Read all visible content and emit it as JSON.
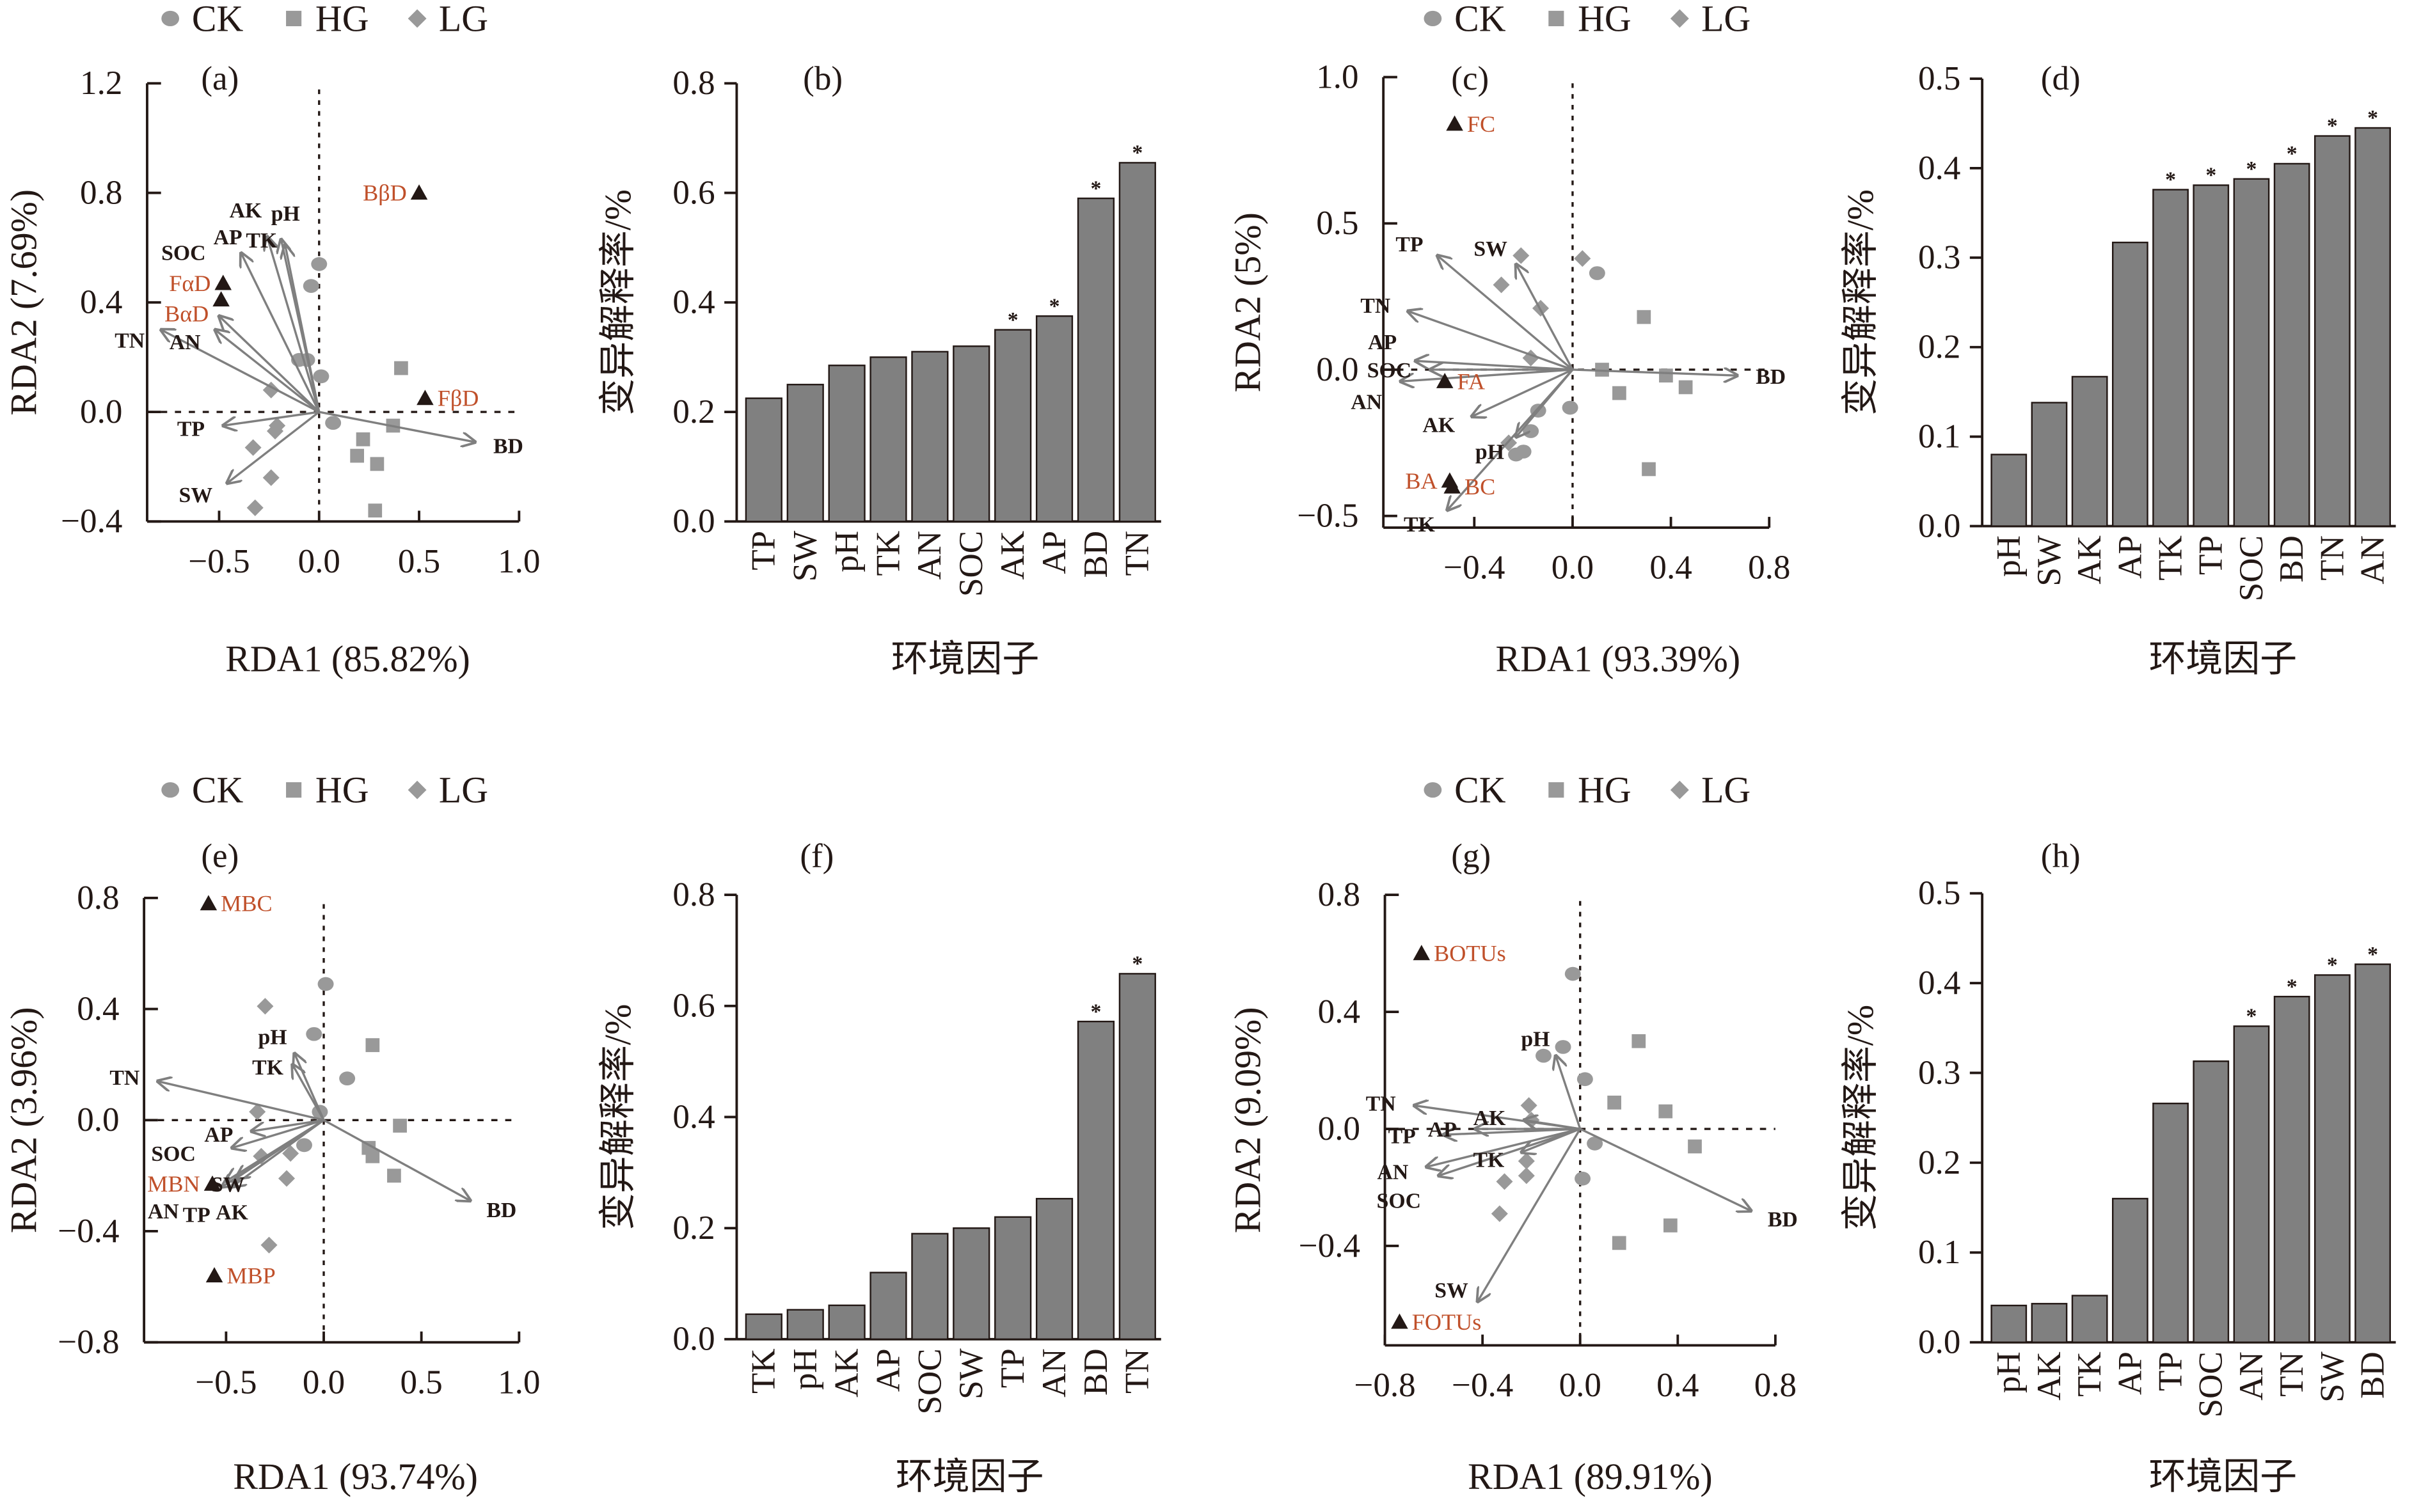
{
  "legend": {
    "items": [
      {
        "label": "CK",
        "shape": "circle"
      },
      {
        "label": "HG",
        "shape": "square"
      },
      {
        "label": "LG",
        "shape": "diamond"
      }
    ]
  },
  "colors": {
    "sample": "#999999",
    "arrow": "#7f7f7f",
    "response_label": "#c0502a",
    "response_marker": "#231815",
    "bar": "#808080"
  },
  "chart_data": [
    {
      "panel": "(a)",
      "type": "scatter",
      "xlabel": "RDA1 (85.82%)",
      "ylabel": "RDA2 (7.69%)",
      "xlim": [
        -0.86,
        1.0
      ],
      "ylim": [
        -0.4,
        1.2
      ],
      "xticks": [
        "−0.5",
        "0.0",
        "0.5",
        "1.0"
      ],
      "yticks": [
        "−0.4",
        "0.0",
        "0.4",
        "0.8",
        "1.2"
      ],
      "env_arrows": [
        {
          "name": "TN",
          "x": -0.79,
          "y": 0.3
        },
        {
          "name": "AN",
          "x": -0.52,
          "y": 0.3
        },
        {
          "name": "SOC",
          "x": -0.5,
          "y": 0.35
        },
        {
          "name": "AP",
          "x": -0.39,
          "y": 0.58
        },
        {
          "name": "AK",
          "x": -0.26,
          "y": 0.64
        },
        {
          "name": "TK",
          "x": -0.19,
          "y": 0.63
        },
        {
          "name": "pH",
          "x": -0.17,
          "y": 0.61
        },
        {
          "name": "TP",
          "x": -0.48,
          "y": -0.05
        },
        {
          "name": "SW",
          "x": -0.46,
          "y": -0.26
        },
        {
          "name": "BD",
          "x": 0.78,
          "y": -0.11
        }
      ],
      "responses": [
        {
          "name": "BβD",
          "x": 0.5,
          "y": 0.8,
          "label_side": "left"
        },
        {
          "name": "FβD",
          "x": 0.53,
          "y": 0.05,
          "label_side": "right"
        },
        {
          "name": "FαD",
          "x": -0.48,
          "y": 0.47,
          "label_side": "left"
        },
        {
          "name": "BαD",
          "x": -0.49,
          "y": 0.41,
          "label_side": "left"
        }
      ],
      "samples": {
        "CK": [
          [
            0.0,
            0.54
          ],
          [
            -0.04,
            0.46
          ],
          [
            -0.1,
            0.19
          ],
          [
            -0.06,
            0.19
          ],
          [
            0.01,
            0.13
          ],
          [
            0.07,
            -0.04
          ]
        ],
        "HG": [
          [
            0.41,
            0.16
          ],
          [
            0.37,
            -0.05
          ],
          [
            0.22,
            -0.1
          ],
          [
            0.19,
            -0.16
          ],
          [
            0.29,
            -0.19
          ],
          [
            0.28,
            -0.36
          ]
        ],
        "LG": [
          [
            -0.24,
            0.08
          ],
          [
            -0.21,
            -0.05
          ],
          [
            -0.22,
            -0.07
          ],
          [
            -0.33,
            -0.13
          ],
          [
            -0.24,
            -0.24
          ],
          [
            -0.32,
            -0.35
          ]
        ]
      }
    },
    {
      "panel": "(b)",
      "type": "bar",
      "xlabel": "环境因子",
      "ylabel": "变异解释率/%",
      "ylim": [
        0,
        0.8
      ],
      "yticks": [
        "0.0",
        "0.2",
        "0.4",
        "0.6",
        "0.8"
      ],
      "categories": [
        "TP",
        "SW",
        "pH",
        "TK",
        "AN",
        "SOC",
        "AK",
        "AP",
        "BD",
        "TN"
      ],
      "values": [
        0.225,
        0.25,
        0.285,
        0.3,
        0.31,
        0.32,
        0.35,
        0.375,
        0.59,
        0.655
      ],
      "significant": [
        false,
        false,
        false,
        false,
        false,
        false,
        true,
        true,
        true,
        true
      ],
      "significance_mark": "*"
    },
    {
      "panel": "(c)",
      "type": "scatter",
      "xlabel": "RDA1 (93.39%)",
      "ylabel": "RDA2 (5%)",
      "xlim": [
        -0.77,
        0.8
      ],
      "ylim": [
        -0.54,
        1.0
      ],
      "xticks": [
        "−0.4",
        "0.0",
        "0.4",
        "0.8"
      ],
      "yticks": [
        "−0.5",
        "0.0",
        "0.5",
        "1.0"
      ],
      "env_arrows": [
        {
          "name": "TP",
          "x": -0.55,
          "y": 0.39
        },
        {
          "name": "SW",
          "x": -0.23,
          "y": 0.36
        },
        {
          "name": "TN",
          "x": -0.67,
          "y": 0.2
        },
        {
          "name": "SOC",
          "x": -0.58,
          "y": 0.0
        },
        {
          "name": "AP",
          "x": -0.64,
          "y": 0.03
        },
        {
          "name": "AN",
          "x": -0.7,
          "y": -0.04
        },
        {
          "name": "AK",
          "x": -0.41,
          "y": -0.16
        },
        {
          "name": "pH",
          "x": -0.23,
          "y": -0.23
        },
        {
          "name": "TK",
          "x": -0.51,
          "y": -0.48
        },
        {
          "name": "BD",
          "x": 0.67,
          "y": -0.02
        }
      ],
      "responses": [
        {
          "name": "FC",
          "x": -0.48,
          "y": 0.84,
          "label_side": "right"
        },
        {
          "name": "FA",
          "x": -0.52,
          "y": -0.04,
          "label_side": "right"
        },
        {
          "name": "BA",
          "x": -0.5,
          "y": -0.38,
          "label_side": "left"
        },
        {
          "name": "BC",
          "x": -0.49,
          "y": -0.4,
          "label_side": "right"
        }
      ],
      "samples": {
        "CK": [
          [
            0.1,
            0.33
          ],
          [
            -0.01,
            -0.13
          ],
          [
            -0.14,
            -0.14
          ],
          [
            -0.17,
            -0.21
          ],
          [
            -0.2,
            -0.28
          ],
          [
            -0.23,
            -0.29
          ]
        ],
        "HG": [
          [
            0.29,
            0.18
          ],
          [
            0.12,
            0.0
          ],
          [
            0.38,
            -0.02
          ],
          [
            0.46,
            -0.06
          ],
          [
            0.19,
            -0.08
          ],
          [
            0.31,
            -0.34
          ]
        ],
        "LG": [
          [
            0.04,
            0.38
          ],
          [
            -0.21,
            0.39
          ],
          [
            -0.29,
            0.29
          ],
          [
            -0.13,
            0.21
          ],
          [
            -0.17,
            0.04
          ],
          [
            -0.26,
            -0.25
          ]
        ]
      }
    },
    {
      "panel": "(d)",
      "type": "bar",
      "xlabel": "环境因子",
      "ylabel": "变异解释率/%",
      "ylim": [
        0,
        0.5
      ],
      "yticks": [
        "0.0",
        "0.1",
        "0.2",
        "0.3",
        "0.4",
        "0.5"
      ],
      "categories": [
        "pH",
        "SW",
        "AK",
        "AP",
        "TK",
        "TP",
        "SOC",
        "BD",
        "TN",
        "AN"
      ],
      "values": [
        0.08,
        0.138,
        0.167,
        0.317,
        0.376,
        0.381,
        0.388,
        0.405,
        0.436,
        0.445
      ],
      "significant": [
        false,
        false,
        false,
        false,
        true,
        true,
        true,
        true,
        true,
        true
      ],
      "significance_mark": "*"
    },
    {
      "panel": "(e)",
      "type": "scatter",
      "xlabel": "RDA1 (93.74%)",
      "ylabel": "RDA2 (3.96%)",
      "xlim": [
        -0.92,
        1.0
      ],
      "ylim": [
        -0.8,
        0.8
      ],
      "xticks": [
        "−0.5",
        "0.0",
        "0.5",
        "1.0"
      ],
      "yticks": [
        "−0.8",
        "−0.4",
        "0.0",
        "0.4",
        "0.8"
      ],
      "env_arrows": [
        {
          "name": "TN",
          "x": -0.85,
          "y": 0.14
        },
        {
          "name": "pH",
          "x": -0.15,
          "y": 0.24
        },
        {
          "name": "TK",
          "x": -0.16,
          "y": 0.2
        },
        {
          "name": "AP",
          "x": -0.37,
          "y": -0.04
        },
        {
          "name": "SOC",
          "x": -0.47,
          "y": -0.1
        },
        {
          "name": "TP",
          "x": -0.5,
          "y": -0.22
        },
        {
          "name": "AN",
          "x": -0.52,
          "y": -0.24
        },
        {
          "name": "SW",
          "x": -0.47,
          "y": -0.24
        },
        {
          "name": "AK",
          "x": -0.45,
          "y": -0.21
        },
        {
          "name": "BD",
          "x": 0.75,
          "y": -0.29
        }
      ],
      "responses": [
        {
          "name": "MBC",
          "x": -0.59,
          "y": 0.78,
          "label_side": "right"
        },
        {
          "name": "MBN",
          "x": -0.57,
          "y": -0.23,
          "label_side": "left"
        },
        {
          "name": "MBP",
          "x": -0.56,
          "y": -0.56,
          "label_side": "right"
        }
      ],
      "samples": {
        "CK": [
          [
            0.01,
            0.49
          ],
          [
            -0.05,
            0.31
          ],
          [
            0.12,
            0.15
          ],
          [
            -0.02,
            0.03
          ],
          [
            -0.1,
            -0.09
          ]
        ],
        "HG": [
          [
            0.25,
            0.27
          ],
          [
            0.39,
            -0.02
          ],
          [
            0.23,
            -0.1
          ],
          [
            0.25,
            -0.13
          ],
          [
            0.36,
            -0.2
          ]
        ],
        "LG": [
          [
            -0.3,
            0.41
          ],
          [
            -0.34,
            0.03
          ],
          [
            -0.17,
            -0.12
          ],
          [
            -0.32,
            -0.13
          ],
          [
            -0.19,
            -0.21
          ],
          [
            -0.28,
            -0.45
          ]
        ]
      }
    },
    {
      "panel": "(f)",
      "type": "bar",
      "xlabel": "环境因子",
      "ylabel": "变异解释率/%",
      "ylim": [
        0,
        0.8
      ],
      "yticks": [
        "0.0",
        "0.2",
        "0.4",
        "0.6",
        "0.8"
      ],
      "categories": [
        "TK",
        "pH",
        "AK",
        "AP",
        "SOC",
        "SW",
        "TP",
        "AN",
        "BD",
        "TN"
      ],
      "values": [
        0.045,
        0.053,
        0.061,
        0.12,
        0.19,
        0.2,
        0.22,
        0.253,
        0.572,
        0.658
      ],
      "significant": [
        false,
        false,
        false,
        false,
        false,
        false,
        false,
        false,
        true,
        true
      ],
      "significance_mark": "*"
    },
    {
      "panel": "(g)",
      "type": "scatter",
      "xlabel": "RDA1 (89.91%)",
      "ylabel": "RDA2 (9.09%)",
      "xlim": [
        -0.8,
        0.8
      ],
      "ylim": [
        -0.74,
        0.8
      ],
      "xticks": [
        "−0.8",
        "−0.4",
        "0.0",
        "0.4",
        "0.8"
      ],
      "yticks": [
        "−0.4",
        "0.0",
        "0.4",
        "0.8"
      ],
      "env_arrows": [
        {
          "name": "TN",
          "x": -0.68,
          "y": 0.08
        },
        {
          "name": "AP",
          "x": -0.43,
          "y": 0.0
        },
        {
          "name": "TP",
          "x": -0.56,
          "y": -0.02
        },
        {
          "name": "AK",
          "x": -0.23,
          "y": 0.03
        },
        {
          "name": "AN",
          "x": -0.63,
          "y": -0.13
        },
        {
          "name": "SOC",
          "x": -0.58,
          "y": -0.16
        },
        {
          "name": "TK",
          "x": -0.24,
          "y": -0.08
        },
        {
          "name": "pH",
          "x": -0.1,
          "y": 0.25
        },
        {
          "name": "SW",
          "x": -0.42,
          "y": -0.59
        },
        {
          "name": "BD",
          "x": 0.7,
          "y": -0.28
        }
      ],
      "responses": [
        {
          "name": "BOTUs",
          "x": -0.65,
          "y": 0.6,
          "label_side": "right"
        },
        {
          "name": "FOTUs",
          "x": -0.74,
          "y": -0.66,
          "label_side": "right"
        }
      ],
      "samples": {
        "CK": [
          [
            -0.03,
            0.53
          ],
          [
            -0.07,
            0.28
          ],
          [
            -0.15,
            0.25
          ],
          [
            0.02,
            0.17
          ],
          [
            0.06,
            -0.05
          ],
          [
            0.01,
            -0.17
          ]
        ],
        "HG": [
          [
            0.24,
            0.3
          ],
          [
            0.14,
            0.09
          ],
          [
            0.35,
            0.06
          ],
          [
            0.47,
            -0.06
          ],
          [
            0.37,
            -0.33
          ],
          [
            0.16,
            -0.39
          ]
        ],
        "LG": [
          [
            -0.21,
            0.08
          ],
          [
            -0.2,
            0.03
          ],
          [
            -0.22,
            -0.11
          ],
          [
            -0.22,
            -0.16
          ],
          [
            -0.31,
            -0.18
          ],
          [
            -0.33,
            -0.29
          ]
        ]
      }
    },
    {
      "panel": "(h)",
      "type": "bar",
      "xlabel": "环境因子",
      "ylabel": "变异解释率/%",
      "ylim": [
        0,
        0.5
      ],
      "yticks": [
        "0.0",
        "0.1",
        "0.2",
        "0.3",
        "0.4",
        "0.5"
      ],
      "categories": [
        "pH",
        "AK",
        "TK",
        "AP",
        "TP",
        "SOC",
        "AN",
        "TN",
        "SW",
        "BD"
      ],
      "values": [
        0.041,
        0.043,
        0.052,
        0.16,
        0.266,
        0.313,
        0.352,
        0.385,
        0.409,
        0.421
      ],
      "significant": [
        false,
        false,
        false,
        false,
        false,
        false,
        true,
        true,
        true,
        true
      ],
      "significance_mark": "*"
    }
  ]
}
